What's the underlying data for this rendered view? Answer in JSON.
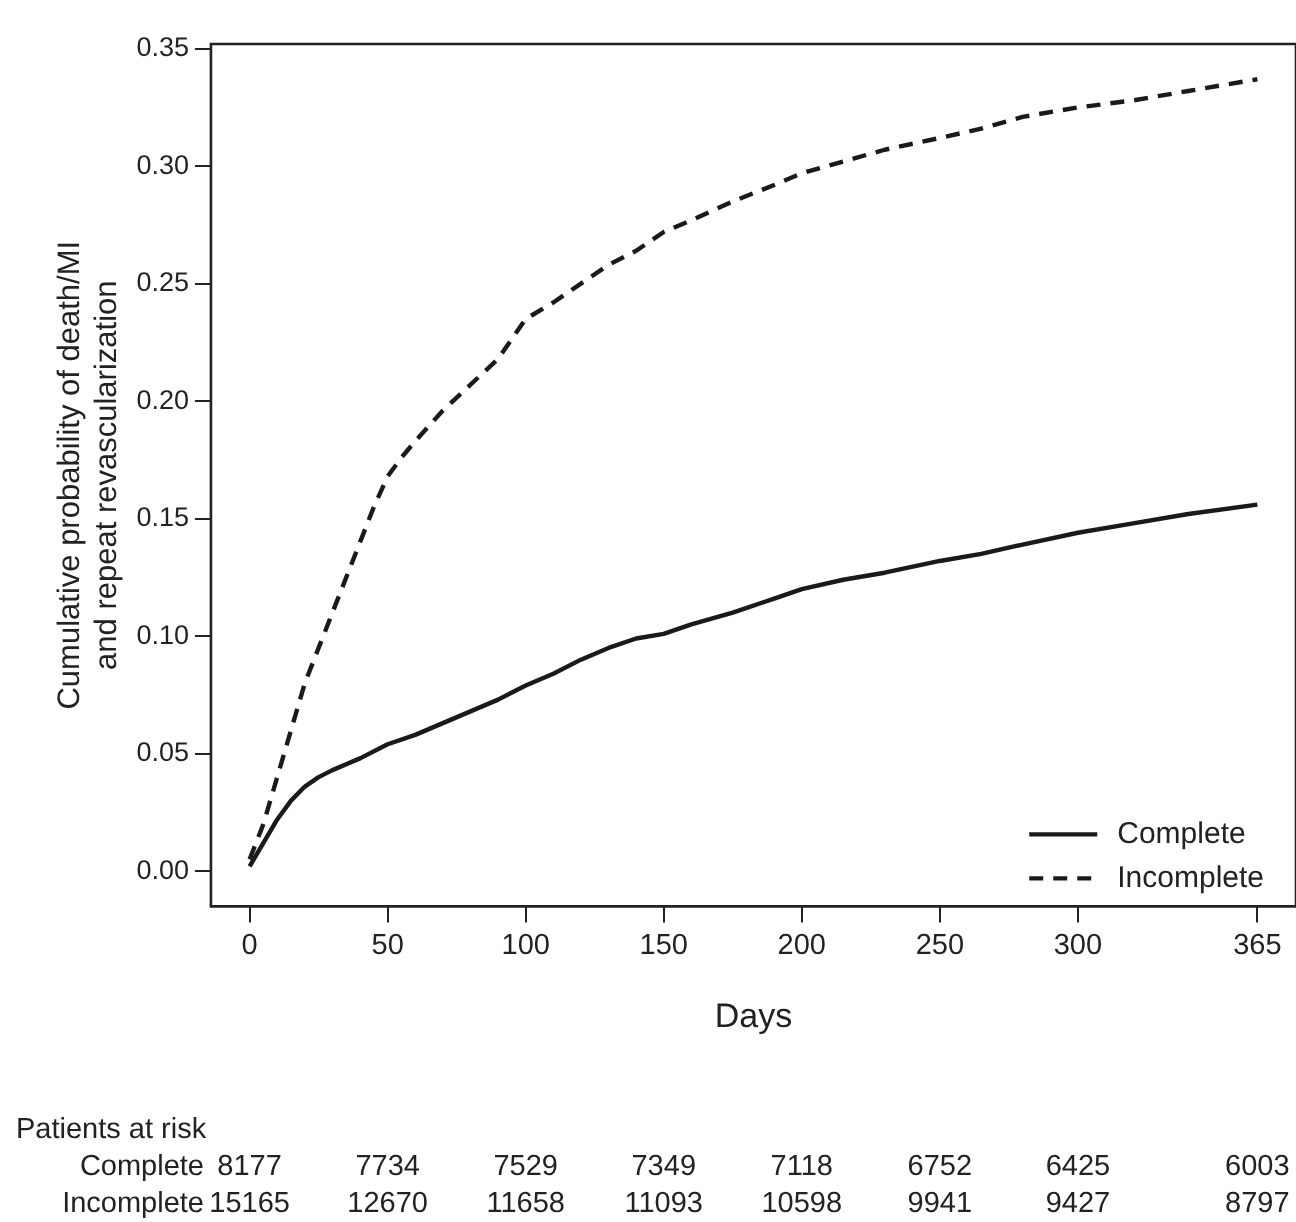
{
  "chart_data": {
    "type": "line",
    "xlabel": "Days",
    "ylabel": "Cumulative probability of death/MI and repeat revascularization",
    "xlim": [
      -14,
      379
    ],
    "xticks": [
      0,
      50,
      100,
      150,
      200,
      250,
      300,
      365
    ],
    "ylim": [
      -0.015,
      0.352
    ],
    "yticks": [
      {
        "value": 0,
        "label": "0.00"
      },
      0.05,
      {
        "value": 0.1,
        "label": "0.10"
      },
      0.15,
      {
        "value": 0.2,
        "label": "0.20"
      },
      0.25,
      {
        "value": 0.3,
        "label": "0.30"
      },
      0.35
    ],
    "grid": false,
    "legend": "bottom right",
    "marker": "none",
    "series": [
      {
        "name": "Complete",
        "color": "#1a1a1a",
        "line_style": "solid",
        "x": [
          0,
          5,
          10,
          15,
          20,
          25,
          30,
          40,
          50,
          60,
          70,
          80,
          90,
          100,
          110,
          120,
          130,
          140,
          150,
          160,
          175,
          190,
          200,
          215,
          230,
          250,
          265,
          280,
          300,
          320,
          340,
          365
        ],
        "values": [
          0.002,
          0.012,
          0.022,
          0.03,
          0.036,
          0.04,
          0.043,
          0.048,
          0.054,
          0.058,
          0.063,
          0.068,
          0.073,
          0.079,
          0.084,
          0.09,
          0.095,
          0.099,
          0.101,
          0.105,
          0.11,
          0.116,
          0.12,
          0.124,
          0.127,
          0.132,
          0.135,
          0.139,
          0.144,
          0.148,
          0.152,
          0.156
        ]
      },
      {
        "name": "Incomplete",
        "color": "#1a1a1a",
        "line_style": "dashed",
        "x": [
          0,
          5,
          10,
          15,
          20,
          25,
          30,
          35,
          40,
          45,
          50,
          55,
          60,
          70,
          80,
          90,
          100,
          110,
          120,
          130,
          140,
          150,
          160,
          175,
          190,
          200,
          215,
          230,
          250,
          265,
          280,
          300,
          320,
          340,
          365
        ],
        "values": [
          0.005,
          0.02,
          0.04,
          0.06,
          0.08,
          0.095,
          0.11,
          0.125,
          0.14,
          0.155,
          0.168,
          0.176,
          0.183,
          0.196,
          0.207,
          0.218,
          0.235,
          0.242,
          0.25,
          0.258,
          0.264,
          0.272,
          0.277,
          0.285,
          0.292,
          0.297,
          0.302,
          0.307,
          0.312,
          0.316,
          0.321,
          0.325,
          0.328,
          0.332,
          0.337
        ]
      }
    ],
    "annotations": [
      "Patients at risk",
      "Complete",
      "8177",
      "7734",
      "7529",
      "7349",
      "7118",
      "6752",
      "6425",
      "6003",
      "Incomplete",
      "15165",
      "12670",
      "11658",
      "11093",
      "10598",
      "9941",
      "9427",
      "8797"
    ]
  }
}
